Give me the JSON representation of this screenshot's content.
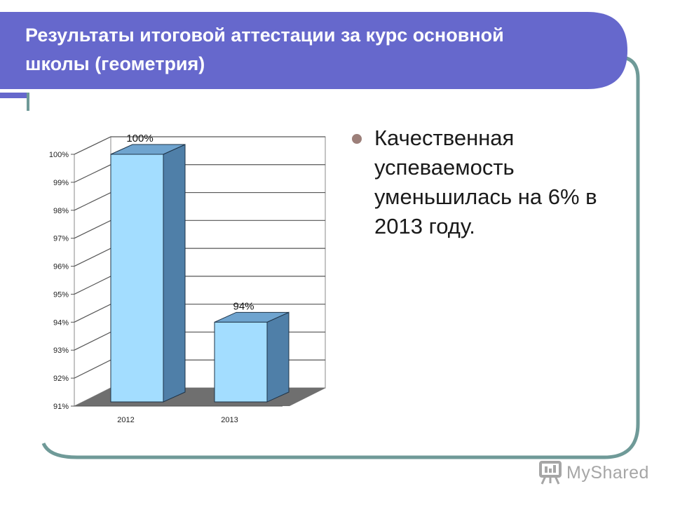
{
  "slide": {
    "title": "Результаты итоговой аттестации за курс основной\nшколы (геометрия)",
    "bullets": [
      "Качественная успеваемость уменьшилась на 6% в 2013 году."
    ],
    "colors": {
      "title_band": "#6668cc",
      "frame": "#6f9a98",
      "bar_front": "#a3ddff",
      "bar_top": "#6fa4cf",
      "bar_side": "#4f7fa8",
      "floor": "#6f6f6f",
      "bullet": "#9c7f79"
    }
  },
  "chart_data": {
    "type": "bar",
    "style": "3d",
    "categories": [
      "2012",
      "2013"
    ],
    "values": [
      100,
      94
    ],
    "data_labels": [
      "100%",
      "94%"
    ],
    "y_ticks": [
      "91%",
      "92%",
      "93%",
      "94%",
      "95%",
      "96%",
      "97%",
      "98%",
      "99%",
      "100%"
    ],
    "ylim": [
      91,
      100
    ],
    "grid": true,
    "legend": "none",
    "title": "",
    "xlabel": "",
    "ylabel": ""
  },
  "watermark": {
    "text": "MyShared",
    "icon": "presentation-board-icon"
  }
}
